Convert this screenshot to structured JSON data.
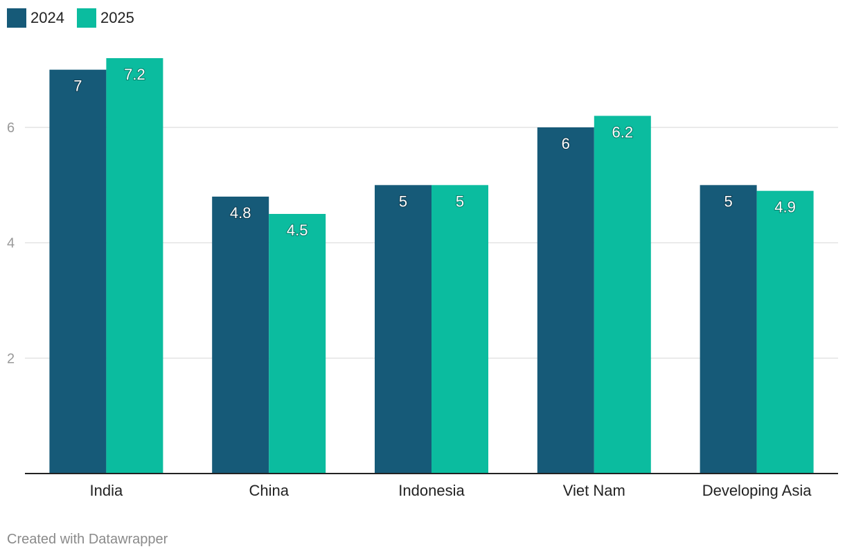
{
  "chart_data": {
    "type": "bar",
    "categories": [
      "India",
      "China",
      "Indonesia",
      "Viet Nam",
      "Developing Asia"
    ],
    "series": [
      {
        "name": "2024",
        "color": "#165a78",
        "values": [
          7,
          4.8,
          5,
          6,
          5
        ],
        "labels": [
          "7",
          "4.8",
          "5",
          "6",
          "5"
        ]
      },
      {
        "name": "2025",
        "color": "#0bbc9f",
        "values": [
          7.2,
          4.5,
          5,
          6.2,
          4.9
        ],
        "labels": [
          "7.2",
          "4.5",
          "5",
          "6.2",
          "4.9"
        ]
      }
    ],
    "y_ticks": [
      2,
      4,
      6
    ],
    "ylim": [
      0,
      7.2
    ],
    "grid": true,
    "legend_position": "top-left"
  },
  "legend": {
    "items": [
      {
        "label": "2024",
        "color": "#165a78"
      },
      {
        "label": "2025",
        "color": "#0bbc9f"
      }
    ]
  },
  "footer": {
    "credit": "Created with Datawrapper"
  }
}
